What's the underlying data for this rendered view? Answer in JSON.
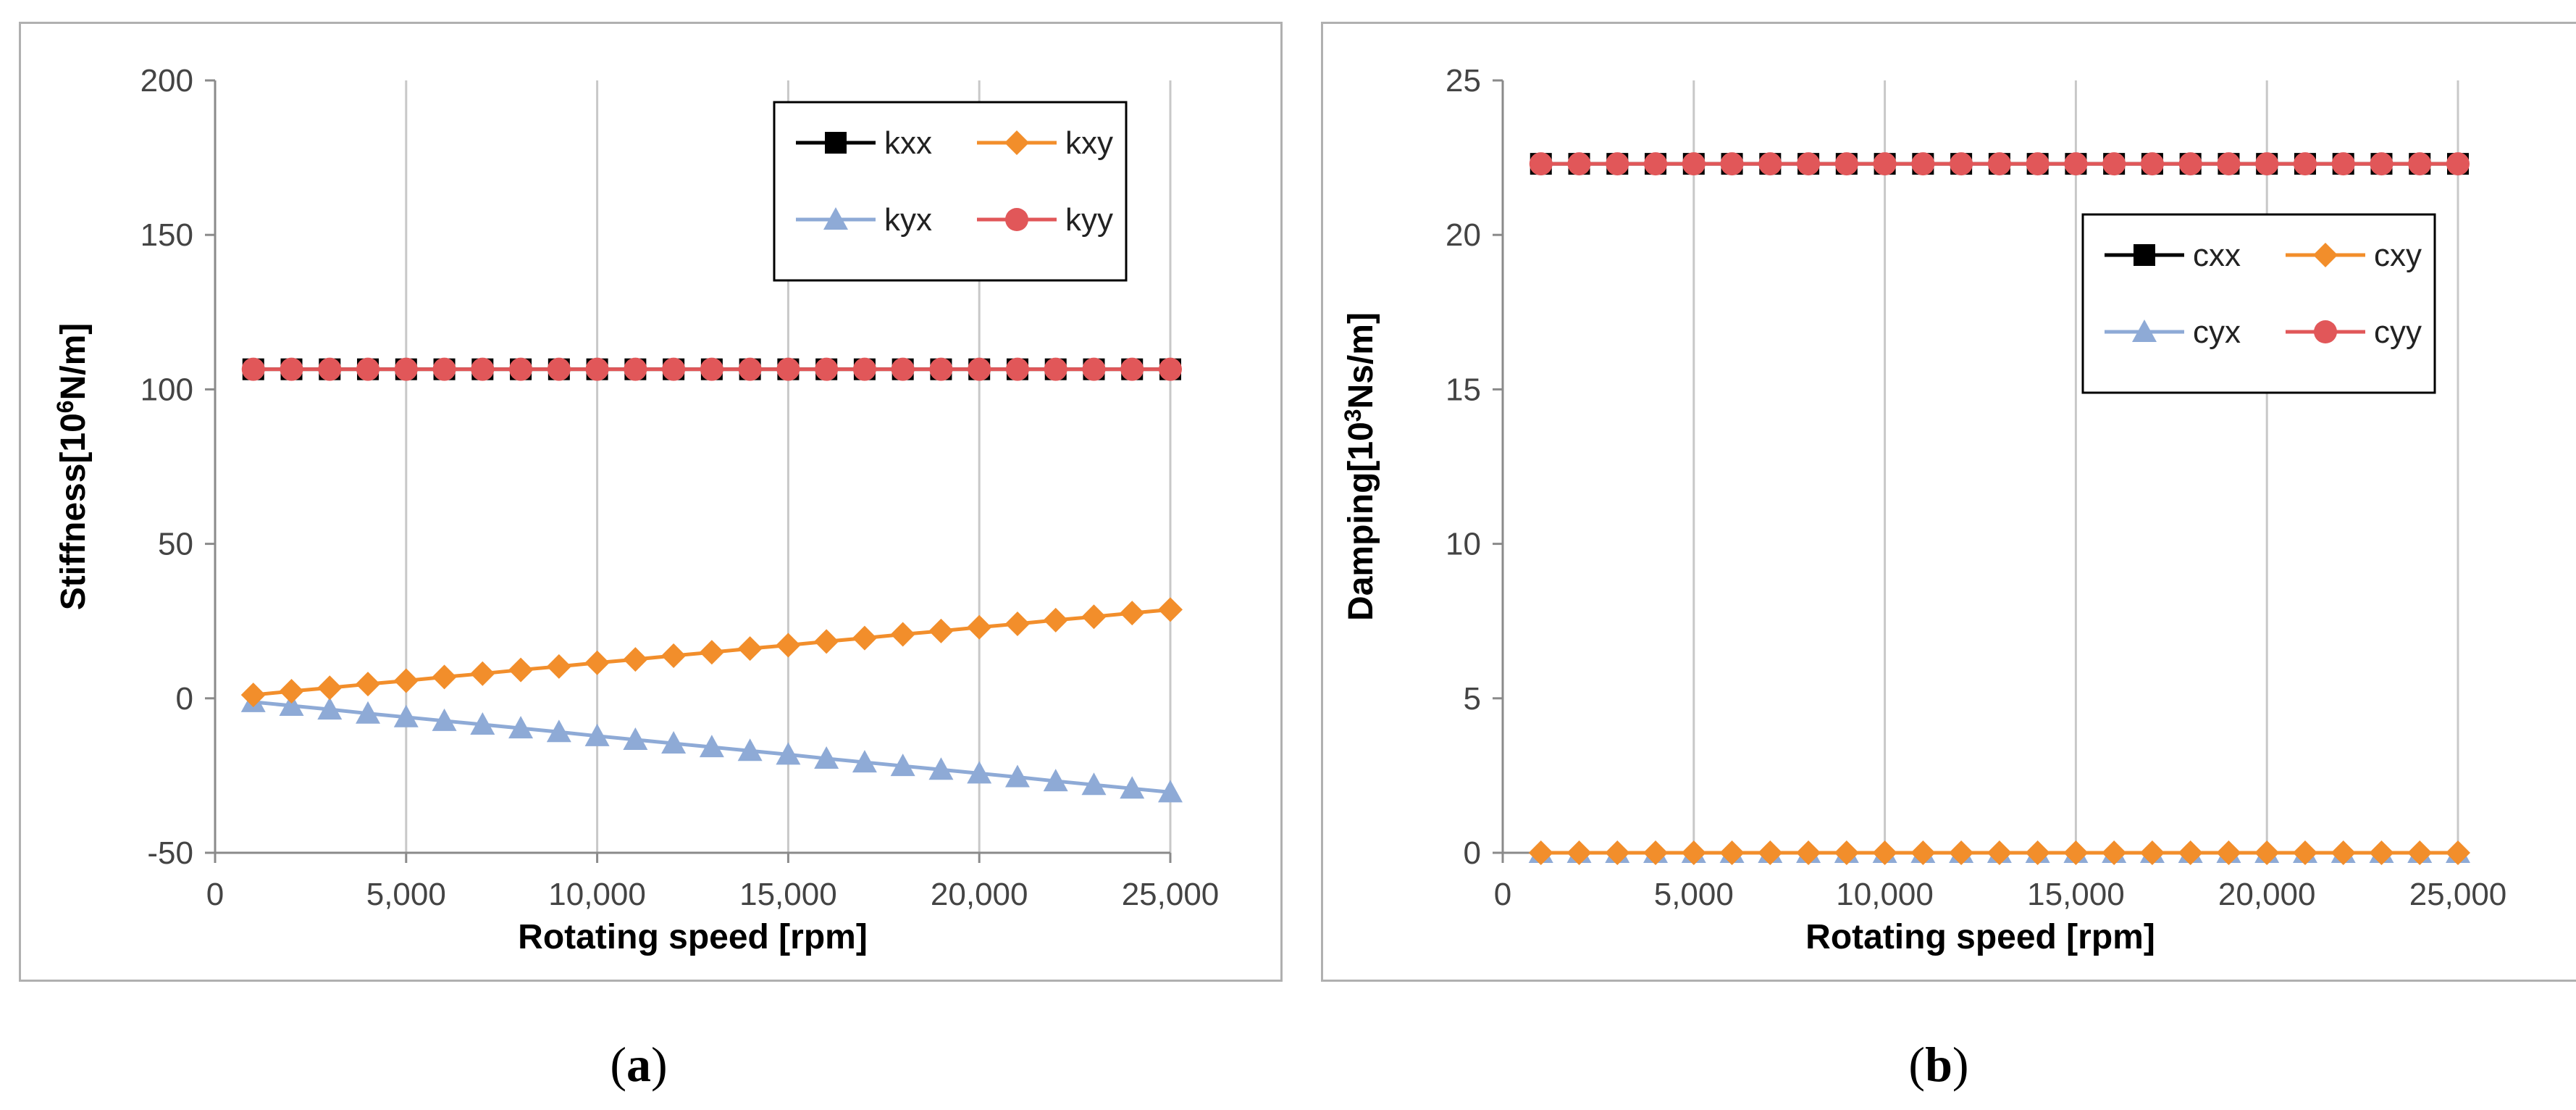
{
  "chart_data": [
    {
      "id": "a",
      "type": "line",
      "caption": "a",
      "xlabel": "Rotating speed  [rpm]",
      "ylabel_main": "Stiffness[10",
      "ylabel_sup": "6",
      "ylabel_end": "N/m]",
      "xlim": [
        0,
        25000
      ],
      "ylim": [
        -50,
        200
      ],
      "xticks": [
        0,
        5000,
        10000,
        15000,
        20000,
        25000
      ],
      "xtick_labels": [
        "0",
        "5,000",
        "10,000",
        "15,000",
        "20,000",
        "25,000"
      ],
      "yticks": [
        -50,
        0,
        50,
        100,
        150,
        200
      ],
      "ytick_labels": [
        "-50",
        "0",
        "50",
        "100",
        "150",
        "200"
      ],
      "grid": "vertical",
      "legend_position": "top-right",
      "x": [
        1000,
        2000,
        3000,
        4000,
        5000,
        6000,
        7000,
        8000,
        9000,
        10000,
        11000,
        12000,
        13000,
        14000,
        15000,
        16000,
        17000,
        18000,
        19000,
        20000,
        21000,
        22000,
        23000,
        24000,
        25000
      ],
      "series": [
        {
          "name": "kxx",
          "color": "#000000",
          "marker": "square",
          "values": [
            106.5,
            106.5,
            106.5,
            106.5,
            106.5,
            106.5,
            106.5,
            106.5,
            106.5,
            106.5,
            106.5,
            106.5,
            106.5,
            106.5,
            106.5,
            106.5,
            106.5,
            106.5,
            106.5,
            106.5,
            106.5,
            106.5,
            106.5,
            106.5,
            106.5
          ]
        },
        {
          "name": "kxy",
          "color": "#f28e2b",
          "marker": "diamond",
          "values": [
            1.1,
            2.3,
            3.4,
            4.6,
            5.7,
            6.9,
            8.0,
            9.2,
            10.3,
            11.5,
            12.6,
            13.8,
            14.9,
            16.1,
            17.2,
            18.4,
            19.5,
            20.7,
            21.8,
            23.0,
            24.1,
            25.3,
            26.4,
            27.6,
            28.7
          ]
        },
        {
          "name": "kyx",
          "color": "#8eaad6",
          "marker": "triangle",
          "values": [
            -1.2,
            -2.4,
            -3.6,
            -4.9,
            -6.1,
            -7.3,
            -8.5,
            -9.7,
            -10.9,
            -12.2,
            -13.4,
            -14.6,
            -15.8,
            -17.0,
            -18.2,
            -19.5,
            -20.7,
            -21.9,
            -23.1,
            -24.3,
            -25.5,
            -26.8,
            -28.0,
            -29.2,
            -30.4
          ]
        },
        {
          "name": "kyy",
          "color": "#e15759",
          "marker": "circle",
          "values": [
            106.5,
            106.5,
            106.5,
            106.5,
            106.5,
            106.5,
            106.5,
            106.5,
            106.5,
            106.5,
            106.5,
            106.5,
            106.5,
            106.5,
            106.5,
            106.5,
            106.5,
            106.5,
            106.5,
            106.5,
            106.5,
            106.5,
            106.5,
            106.5,
            106.5
          ]
        }
      ]
    },
    {
      "id": "b",
      "type": "line",
      "caption": "b",
      "xlabel": "Rotating speed  [rpm]",
      "ylabel_main": "Damping[10",
      "ylabel_sup": "3",
      "ylabel_end": "Ns/m]",
      "xlim": [
        0,
        25000
      ],
      "ylim": [
        0,
        25
      ],
      "xticks": [
        0,
        5000,
        10000,
        15000,
        20000,
        25000
      ],
      "xtick_labels": [
        "0",
        "5,000",
        "10,000",
        "15,000",
        "20,000",
        "25,000"
      ],
      "yticks": [
        0,
        5,
        10,
        15,
        20,
        25
      ],
      "ytick_labels": [
        "0",
        "5",
        "10",
        "15",
        "20",
        "25"
      ],
      "grid": "vertical",
      "legend_position": "right",
      "x": [
        1000,
        2000,
        3000,
        4000,
        5000,
        6000,
        7000,
        8000,
        9000,
        10000,
        11000,
        12000,
        13000,
        14000,
        15000,
        16000,
        17000,
        18000,
        19000,
        20000,
        21000,
        22000,
        23000,
        24000,
        25000
      ],
      "series": [
        {
          "name": "cxx",
          "color": "#000000",
          "marker": "square",
          "values": [
            22.3,
            22.3,
            22.3,
            22.3,
            22.3,
            22.3,
            22.3,
            22.3,
            22.3,
            22.3,
            22.3,
            22.3,
            22.3,
            22.3,
            22.3,
            22.3,
            22.3,
            22.3,
            22.3,
            22.3,
            22.3,
            22.3,
            22.3,
            22.3,
            22.3
          ]
        },
        {
          "name": "cxy",
          "color": "#f28e2b",
          "marker": "diamond",
          "values": [
            0,
            0,
            0,
            0,
            0,
            0,
            0,
            0,
            0,
            0,
            0,
            0,
            0,
            0,
            0,
            0,
            0,
            0,
            0,
            0,
            0,
            0,
            0,
            0,
            0
          ]
        },
        {
          "name": "cyx",
          "color": "#8eaad6",
          "marker": "triangle",
          "values": [
            0,
            0,
            0,
            0,
            0,
            0,
            0,
            0,
            0,
            0,
            0,
            0,
            0,
            0,
            0,
            0,
            0,
            0,
            0,
            0,
            0,
            0,
            0,
            0,
            0
          ]
        },
        {
          "name": "cyy",
          "color": "#e15759",
          "marker": "circle",
          "values": [
            22.3,
            22.3,
            22.3,
            22.3,
            22.3,
            22.3,
            22.3,
            22.3,
            22.3,
            22.3,
            22.3,
            22.3,
            22.3,
            22.3,
            22.3,
            22.3,
            22.3,
            22.3,
            22.3,
            22.3,
            22.3,
            22.3,
            22.3,
            22.3,
            22.3
          ]
        }
      ]
    }
  ]
}
